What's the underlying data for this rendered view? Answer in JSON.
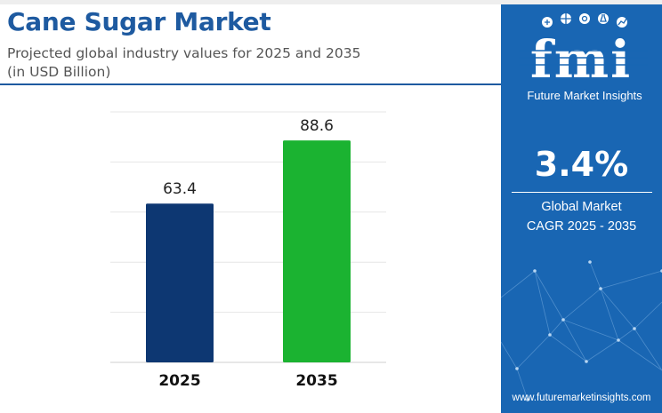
{
  "header": {
    "title": "Cane Sugar Market",
    "subtitle_line1": "Projected global industry values for 2025 and 2035",
    "subtitle_line2": "(in USD Billion)"
  },
  "chart_data": {
    "type": "bar",
    "categories": [
      "2025",
      "2035"
    ],
    "values": [
      63.4,
      88.6
    ],
    "data_labels": [
      "63.4",
      "88.6"
    ],
    "bar_colors": [
      "#0d3772",
      "#1bb331"
    ],
    "ylim": [
      0,
      100
    ],
    "grid": true,
    "title": "",
    "xlabel": "",
    "ylabel": ""
  },
  "side_panel": {
    "brand_logo_text": "fmi",
    "brand_name": "Future Market Insights",
    "cagr_value": "3.4%",
    "cagr_label_line1": "Global Market",
    "cagr_label_line2": "CAGR 2025 - 2035",
    "website": "www.futuremarketinsights.com",
    "background_color": "#1966b3",
    "logo_icons": [
      "leaf-icon",
      "globe-icon",
      "gear-icon",
      "flask-icon",
      "chart-icon"
    ]
  }
}
